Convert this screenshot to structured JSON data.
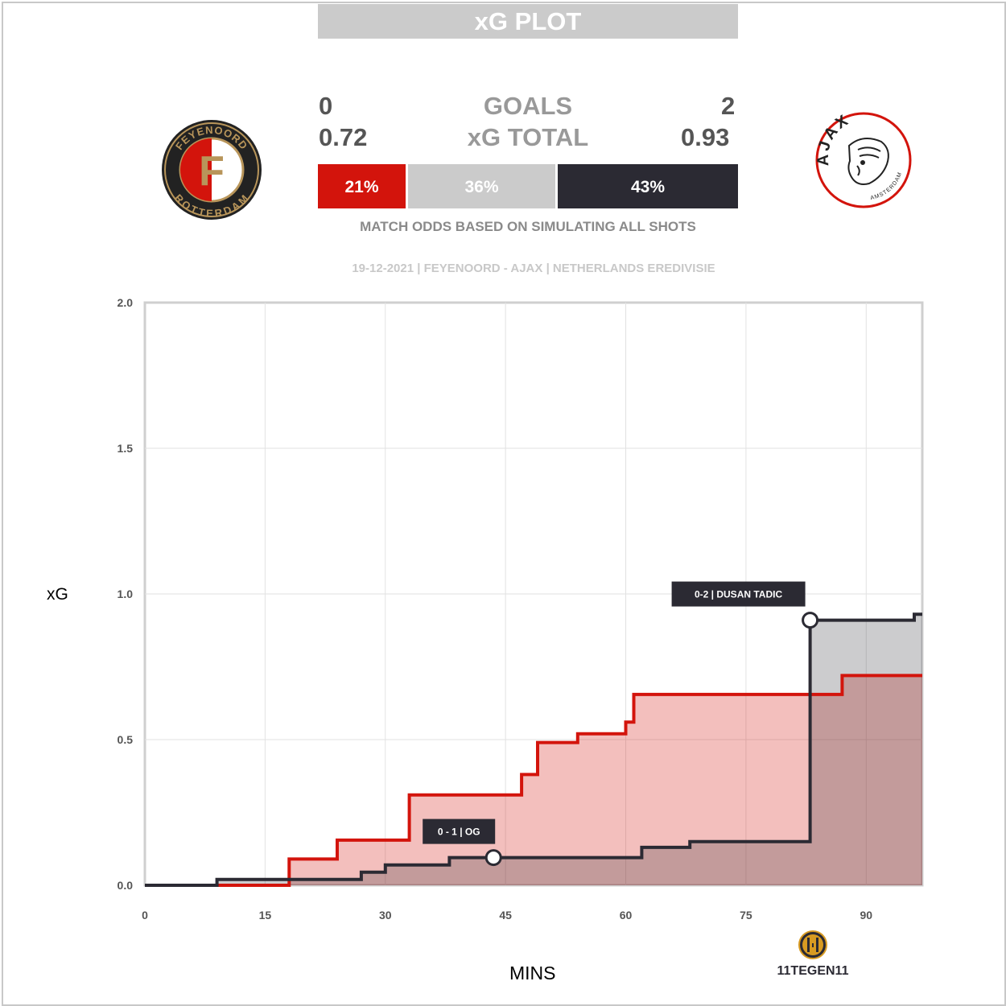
{
  "header": {
    "title": "xG PLOT",
    "home_goals": "0",
    "away_goals": "2",
    "goals_label": "GOALS",
    "home_xg": "0.72",
    "away_xg": "0.93",
    "xg_label": "xG TOTAL",
    "odds": {
      "home": "21%",
      "draw": "36%",
      "away": "43%"
    },
    "odds_note": "MATCH ODDS BASED ON SIMULATING ALL SHOTS",
    "match_info": "19-12-2021 | FEYENOORD - AJAX | NETHERLANDS EREDIVISIE"
  },
  "logos": {
    "home_top_text": "FEYENOORD",
    "home_bottom_text": "ROTTERDAM",
    "home_letter": "F",
    "away_text": "AJAX",
    "away_sub": "AMSTERDAM",
    "brand": "11TEGEN11"
  },
  "colors": {
    "home": "#d3140c",
    "away": "#2b2a33",
    "draw": "#cbcbcb"
  },
  "chart_data": {
    "type": "line",
    "xlabel": "MINS",
    "ylabel": "xG",
    "xlim": [
      0,
      97
    ],
    "ylim": [
      0,
      2.0
    ],
    "x_ticks": [
      "0",
      "15",
      "30",
      "45",
      "60",
      "75",
      "90"
    ],
    "y_ticks": [
      "0.0",
      "0.5",
      "1.0",
      "1.5",
      "2.0"
    ],
    "grid": true,
    "series": [
      {
        "name": "FEYENOORD",
        "color": "#d3140c",
        "points": [
          [
            0,
            0
          ],
          [
            18,
            0
          ],
          [
            18,
            0.09
          ],
          [
            24,
            0.09
          ],
          [
            24,
            0.155
          ],
          [
            33,
            0.155
          ],
          [
            33,
            0.31
          ],
          [
            47,
            0.31
          ],
          [
            47,
            0.38
          ],
          [
            49,
            0.38
          ],
          [
            49,
            0.49
          ],
          [
            54,
            0.49
          ],
          [
            54,
            0.52
          ],
          [
            60,
            0.52
          ],
          [
            60,
            0.56
          ],
          [
            61,
            0.56
          ],
          [
            61,
            0.655
          ],
          [
            87,
            0.655
          ],
          [
            87,
            0.72
          ],
          [
            97,
            0.72
          ]
        ]
      },
      {
        "name": "AJAX",
        "color": "#2b2a33",
        "points": [
          [
            0,
            0
          ],
          [
            9,
            0
          ],
          [
            9,
            0.02
          ],
          [
            27,
            0.02
          ],
          [
            27,
            0.045
          ],
          [
            30,
            0.045
          ],
          [
            30,
            0.07
          ],
          [
            38,
            0.07
          ],
          [
            38,
            0.095
          ],
          [
            62,
            0.095
          ],
          [
            62,
            0.13
          ],
          [
            68,
            0.13
          ],
          [
            68,
            0.15
          ],
          [
            83,
            0.15
          ],
          [
            83,
            0.91
          ],
          [
            96,
            0.91
          ],
          [
            96,
            0.93
          ],
          [
            97,
            0.93
          ]
        ]
      }
    ],
    "annotations": [
      {
        "label": "0 - 1  |  OG",
        "minute": 43.5,
        "xg": 0.095
      },
      {
        "label": "0-2 | DUSAN TADIC",
        "minute": 83,
        "xg": 0.91
      }
    ]
  }
}
